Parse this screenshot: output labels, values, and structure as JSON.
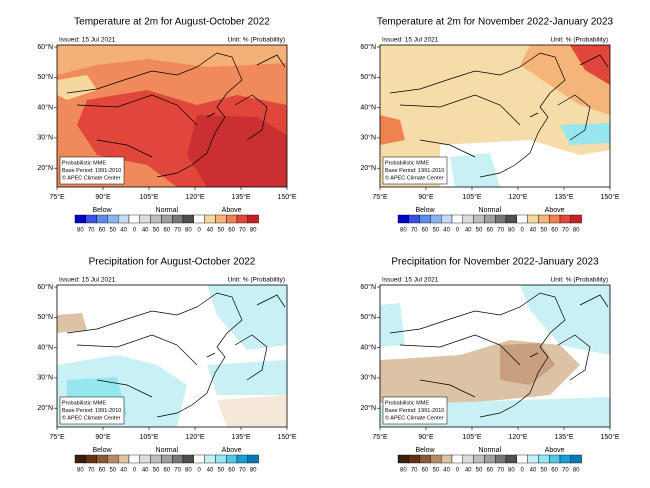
{
  "panels": [
    {
      "title": "Temperature at 2m for August-October 2022",
      "issued": "Issued: 15 Jul 2021",
      "unit": "Unit: % (Probability)",
      "legend_colors": [
        "#0000c8",
        "#3c50e6",
        "#5a8cf0",
        "#8cb4f0",
        "#c8dcf5",
        "#ffffff",
        "#dcdcdc",
        "#bebebe",
        "#a0a0a0",
        "#787878",
        "#505050",
        "#ffffff",
        "#f5d8a0",
        "#f5b478",
        "#f08250",
        "#e0463a",
        "#c81e28"
      ]
    },
    {
      "title": "Temperature at 2m for November 2022-January 2023",
      "issued": "Issued: 15 Jul 2021",
      "unit": "Unit: % (Probability)",
      "legend_colors": [
        "#0000c8",
        "#3c50e6",
        "#5a8cf0",
        "#8cb4f0",
        "#c8dcf5",
        "#ffffff",
        "#dcdcdc",
        "#bebebe",
        "#a0a0a0",
        "#787878",
        "#505050",
        "#ffffff",
        "#f5d8a0",
        "#f5b478",
        "#f08250",
        "#e0463a",
        "#c81e28"
      ]
    },
    {
      "title": "Precipitation for August-October 2022",
      "issued": "Issued: 15 Jul 2021",
      "unit": "Unit: % (Probability)",
      "legend_colors": [
        "#3c1e0a",
        "#643214",
        "#8c5a32",
        "#b48c64",
        "#dcc3a5",
        "#ffffff",
        "#dcdcdc",
        "#bebebe",
        "#a0a0a0",
        "#787878",
        "#505050",
        "#ffffff",
        "#c8f0f5",
        "#96e6f0",
        "#50c8e6",
        "#14a0d2",
        "#0a78b4"
      ]
    },
    {
      "title": "Precipitation for November 2022-January 2023",
      "issued": "Issued: 15 Jul 2021",
      "unit": "Unit: % (Probability)",
      "legend_colors": [
        "#3c1e0a",
        "#643214",
        "#8c5a32",
        "#b48c64",
        "#dcc3a5",
        "#ffffff",
        "#dcdcdc",
        "#bebebe",
        "#a0a0a0",
        "#787878",
        "#505050",
        "#ffffff",
        "#c8f0f5",
        "#96e6f0",
        "#50c8e6",
        "#14a0d2",
        "#0a78b4"
      ]
    }
  ],
  "lat_labels": [
    "60°N",
    "50°N",
    "40°N",
    "30°N",
    "20°N"
  ],
  "lon_labels": [
    "75°E",
    "90°E",
    "105°E",
    "120°E",
    "135°E",
    "150°E"
  ],
  "inset": [
    "Probabilistic MME",
    "Base Period: 1991-2010",
    "© APEC Climate Center"
  ],
  "legend_headings": [
    "Below",
    "Normal",
    "Above"
  ],
  "legend_numbers": [
    80,
    70,
    60,
    50,
    40,
    0,
    40,
    50,
    60,
    70,
    80,
    0,
    40,
    50,
    60,
    70,
    80
  ]
}
